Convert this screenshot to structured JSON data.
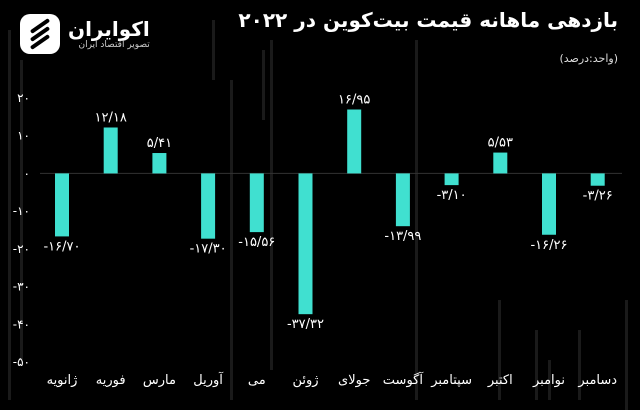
{
  "header": {
    "title": "بازدهی ماهانه قیمت بیت‌کوین در ۲۰۲۲",
    "unit": "(واحد:درصد)"
  },
  "logo": {
    "name": "اکوایران",
    "tagline": "تصویر اقتصاد ایران"
  },
  "colors": {
    "bar": "#40e0d0",
    "background": "#000000",
    "text": "#ffffff"
  },
  "chart_data": {
    "type": "bar",
    "categories": [
      "ژانویه",
      "فوریه",
      "مارس",
      "آوریل",
      "می",
      "ژوئن",
      "جولای",
      "آگوست",
      "سپتامبر",
      "اکتبر",
      "نوامبر",
      "دسامبر"
    ],
    "values": [
      -16.7,
      12.18,
      5.41,
      -17.3,
      -15.56,
      -37.32,
      16.95,
      -13.99,
      -3.1,
      5.53,
      -16.26,
      -3.26
    ],
    "labels": [
      "-۱۶/۷۰",
      "۱۲/۱۸",
      "۵/۴۱",
      "-۱۷/۳۰",
      "-۱۵/۵۶",
      "-۳۷/۳۲",
      "۱۶/۹۵",
      "-۱۳/۹۹",
      "-۳/۱۰",
      "۵/۵۳",
      "-۱۶/۲۶",
      "-۳/۲۶"
    ],
    "yticks": [
      20,
      10,
      0,
      -10,
      -20,
      -30,
      -40,
      -50
    ],
    "ytick_labels": [
      "۲۰",
      "۱۰",
      "۰",
      "-۱۰",
      "-۲۰",
      "-۳۰",
      "-۴۰",
      "-۵۰"
    ],
    "ylim": [
      -50,
      20
    ],
    "grid": false
  }
}
